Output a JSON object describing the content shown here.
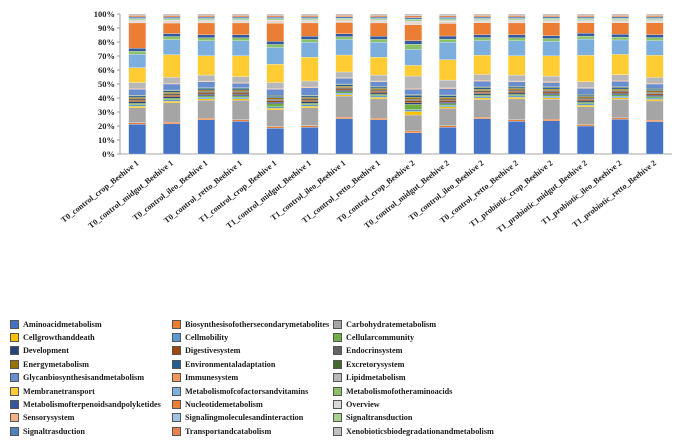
{
  "chart_data": {
    "type": "bar",
    "stacked": true,
    "percent": true,
    "title": "",
    "xlabel": "",
    "ylabel": "",
    "ylim": [
      0,
      100
    ],
    "y_ticks": [
      "0%",
      "10%",
      "20%",
      "30%",
      "40%",
      "50%",
      "60%",
      "70%",
      "80%",
      "90%",
      "100%"
    ],
    "categories": [
      "T0_control_crop_Beehive 1",
      "T0_control_midgut_Beehive 1",
      "T0_control_ileo_Beehive 1",
      "T0_control_retto_Beehive 1",
      "T1_control_crop_Beehive 1",
      "T1_control_midgut_Beehive 1",
      "T1_control_ileo_Beehive 1",
      "T1_control_retto_Beehive 1",
      "T0_control_crop_Beehive 2",
      "T0_control_midgut_Beehive 2",
      "T0_control_ileo_Beehive 2",
      "T0_control_retto_Beehive 2",
      "T1_probiotic_crop_Beehive 2",
      "T1_probiotic_midgut_Beehive 2",
      "T1_probiotic_ileo_Beehive 2",
      "T1_probiotic_retto_Beehive 2"
    ],
    "legend_position": "bottom",
    "series": [
      {
        "name": "Aminoacidmetabolism",
        "color": "#4472C4",
        "values": [
          20,
          20,
          23,
          22,
          17,
          18,
          25,
          23,
          12,
          17,
          24,
          22,
          23,
          19,
          24,
          22
        ]
      },
      {
        "name": "Biosynthesisofothersecondarymetabolites",
        "color": "#ED7D31",
        "values": [
          1,
          1,
          1,
          1,
          1,
          1,
          1,
          1,
          1,
          1,
          1,
          1,
          1,
          1,
          1,
          1
        ]
      },
      {
        "name": "Carbohydratemetabolism",
        "color": "#A5A5A5",
        "values": [
          10,
          13,
          12,
          13,
          11,
          12,
          15,
          13,
          9,
          11,
          12,
          14,
          14,
          12,
          13,
          13
        ]
      },
      {
        "name": "Cellgrowthanddeath",
        "color": "#FFC000",
        "values": [
          1,
          1,
          1,
          1,
          1,
          1,
          1,
          1,
          2,
          1,
          1,
          1,
          1,
          1,
          1,
          1
        ]
      },
      {
        "name": "Cellmobility",
        "color": "#5B9BD5",
        "values": [
          1,
          1,
          1,
          1,
          1,
          1,
          1,
          1,
          1,
          1,
          1,
          1,
          1,
          1,
          1,
          1
        ]
      },
      {
        "name": "Cellularcommunity",
        "color": "#70AD47",
        "values": [
          1,
          1,
          1,
          1,
          2,
          1,
          1,
          1,
          3,
          1,
          1,
          1,
          1,
          1,
          1,
          1
        ]
      },
      {
        "name": "Development",
        "color": "#264478",
        "values": [
          1,
          1,
          1,
          1,
          1,
          1,
          1,
          1,
          1,
          1,
          1,
          1,
          1,
          1,
          1,
          1
        ]
      },
      {
        "name": "Digestivesystem",
        "color": "#9E480E",
        "values": [
          1,
          1,
          1,
          1,
          1,
          1,
          1,
          1,
          1,
          1,
          1,
          1,
          1,
          1,
          1,
          1
        ]
      },
      {
        "name": "Endocrinsystem",
        "color": "#636363",
        "values": [
          1,
          1,
          1,
          1,
          1,
          1,
          1,
          1,
          1,
          1,
          1,
          1,
          1,
          1,
          1,
          1
        ]
      },
      {
        "name": "Energymetabolism",
        "color": "#997300",
        "values": [
          1,
          1,
          1,
          1,
          1,
          1,
          1,
          1,
          1,
          1,
          1,
          1,
          1,
          1,
          1,
          1
        ]
      },
      {
        "name": "Environmentaladaptation",
        "color": "#255E91",
        "values": [
          1,
          1,
          1,
          1,
          1,
          1,
          1,
          1,
          1,
          1,
          1,
          1,
          1,
          1,
          1,
          1
        ]
      },
      {
        "name": "Excretorysystem",
        "color": "#43682B",
        "values": [
          0.5,
          0.5,
          0.5,
          0.5,
          0.5,
          0.5,
          0.5,
          0.5,
          0.5,
          0.5,
          0.5,
          0.5,
          0.5,
          0.5,
          0.5,
          0.5
        ]
      },
      {
        "name": "Glycanbiosynthesisandmetabolism",
        "color": "#698ED0",
        "values": [
          4,
          4,
          4,
          3,
          4,
          5,
          4,
          3,
          3,
          4,
          4,
          3,
          3,
          4,
          4,
          3
        ]
      },
      {
        "name": "Immunesystem",
        "color": "#F1975A",
        "values": [
          0.5,
          0.5,
          0.5,
          0.5,
          0.5,
          0.5,
          0.5,
          0.5,
          0.5,
          0.5,
          0.5,
          0.5,
          0.5,
          0.5,
          0.5,
          0.5
        ]
      },
      {
        "name": "Lipidmetabolism",
        "color": "#B7B7B7",
        "values": [
          4,
          4,
          4,
          4,
          4,
          4,
          4,
          4,
          7,
          5,
          4,
          4,
          4,
          4,
          4,
          4
        ]
      },
      {
        "name": "Membranetransport",
        "color": "#FFCD33",
        "values": [
          10,
          15,
          13,
          14,
          12,
          16,
          12,
          12,
          6,
          13,
          13,
          13,
          14,
          18,
          14,
          15
        ]
      },
      {
        "name": "Metabolismofcofactorsandvitamins",
        "color": "#7CAFDD",
        "values": [
          9,
          10,
          10,
          10,
          11,
          10,
          11,
          10,
          9,
          11,
          10,
          10,
          10,
          11,
          10,
          10
        ]
      },
      {
        "name": "Metabolismofotheraminoacids",
        "color": "#8CC168",
        "values": [
          2,
          2,
          2,
          2,
          2,
          2,
          2,
          2,
          3,
          2,
          2,
          2,
          2,
          2,
          2,
          2
        ]
      },
      {
        "name": "Metabolismofterpenoidsandpolyketides",
        "color": "#335AA1",
        "values": [
          2,
          2,
          2,
          2,
          2,
          2,
          2,
          2,
          2,
          2,
          2,
          2,
          2,
          2,
          2,
          2
        ]
      },
      {
        "name": "Nucleotidemetabolism",
        "color": "#EB7E34",
        "values": [
          17,
          7,
          8,
          8,
          12,
          9,
          8,
          9,
          9,
          8,
          8,
          8,
          9,
          7,
          8,
          8
        ]
      },
      {
        "name": "Overview",
        "color": "#D9D9D9",
        "values": [
          1,
          1,
          1,
          1,
          1,
          1,
          1,
          1,
          1,
          1,
          1,
          1,
          1,
          1,
          1,
          1
        ]
      },
      {
        "name": "Sensorysystem",
        "color": "#F4B183",
        "values": [
          0.5,
          0.5,
          0.5,
          0.5,
          0.5,
          0.5,
          0.5,
          0.5,
          0.5,
          0.5,
          0.5,
          0.5,
          0.5,
          0.5,
          0.5,
          0.5
        ]
      },
      {
        "name": "Signalingmoleculesandinteraction",
        "color": "#9DC3E6",
        "values": [
          0.5,
          0.5,
          0.5,
          0.5,
          0.5,
          0.5,
          0.5,
          0.5,
          0.5,
          0.5,
          0.5,
          0.5,
          0.5,
          0.5,
          0.5,
          0.5
        ]
      },
      {
        "name": "Signaltransduction",
        "color": "#A9D18E",
        "values": [
          1,
          1,
          1,
          1,
          1,
          1,
          1,
          1,
          1,
          1,
          1,
          1,
          1,
          1,
          1,
          1
        ]
      },
      {
        "name": "Signaltrasduction",
        "color": "#4F81BD",
        "values": [
          1,
          1,
          1,
          1,
          1,
          1,
          1,
          1,
          1,
          1,
          1,
          1,
          1,
          1,
          1,
          1
        ]
      },
      {
        "name": "Transportandcatabolism",
        "color": "#E6824A",
        "values": [
          1,
          1,
          1,
          1,
          1,
          1,
          1,
          1,
          1,
          1,
          1,
          1,
          1,
          1,
          1,
          1
        ]
      },
      {
        "name": "Xenobioticsbiodegradationandmetabolism",
        "color": "#BFBFBF",
        "values": [
          1,
          1,
          1,
          1,
          1,
          1,
          1,
          1,
          1,
          1,
          1,
          1,
          1,
          1,
          1,
          1
        ]
      }
    ]
  }
}
